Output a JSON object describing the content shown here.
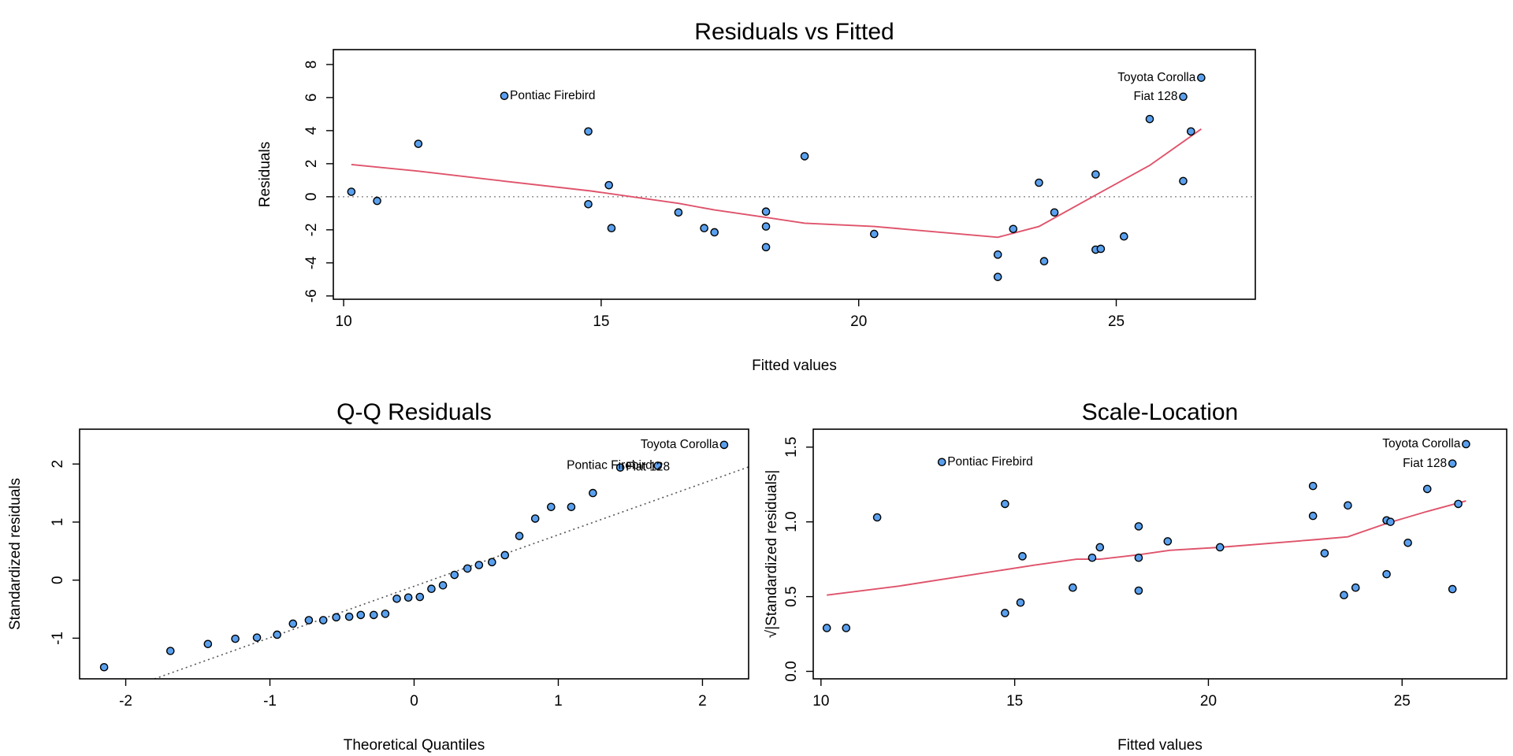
{
  "colors": {
    "points_fill": "#5aa0ee",
    "points_stroke": "#000000",
    "smoother": "#df536b",
    "reference_line": "#9a9a9a",
    "qq_line": "#555555"
  },
  "chart_data": [
    {
      "type": "scatter",
      "title": "Residuals vs Fitted",
      "xlabel": "Fitted values",
      "ylabel": "Residuals",
      "xlim": [
        9.8,
        27.7
      ],
      "ylim": [
        -6.2,
        8.9
      ],
      "xticks": [
        10,
        15,
        20,
        25
      ],
      "yticks": [
        -6,
        -4,
        -2,
        0,
        2,
        4,
        6,
        8
      ],
      "grid": false,
      "reference_line": {
        "y": 0
      },
      "points": [
        {
          "x": 10.15,
          "y": 0.3
        },
        {
          "x": 10.65,
          "y": -0.25
        },
        {
          "x": 11.45,
          "y": 3.2
        },
        {
          "x": 13.12,
          "y": 6.1,
          "label": "Pontiac Firebird"
        },
        {
          "x": 14.75,
          "y": 3.95
        },
        {
          "x": 14.75,
          "y": -0.45
        },
        {
          "x": 15.15,
          "y": 0.7
        },
        {
          "x": 15.2,
          "y": -1.9
        },
        {
          "x": 16.5,
          "y": -0.95
        },
        {
          "x": 17.0,
          "y": -1.9
        },
        {
          "x": 17.2,
          "y": -2.15
        },
        {
          "x": 18.2,
          "y": -0.9
        },
        {
          "x": 18.2,
          "y": -1.8
        },
        {
          "x": 18.2,
          "y": -3.05
        },
        {
          "x": 18.95,
          "y": 2.45
        },
        {
          "x": 20.3,
          "y": -2.25
        },
        {
          "x": 22.7,
          "y": -3.5
        },
        {
          "x": 22.7,
          "y": -4.85
        },
        {
          "x": 23.0,
          "y": -1.95
        },
        {
          "x": 23.5,
          "y": 0.85
        },
        {
          "x": 23.6,
          "y": -3.9
        },
        {
          "x": 23.8,
          "y": -0.95
        },
        {
          "x": 24.6,
          "y": 1.35
        },
        {
          "x": 24.6,
          "y": -3.2
        },
        {
          "x": 24.7,
          "y": -3.15
        },
        {
          "x": 25.15,
          "y": -2.4
        },
        {
          "x": 25.65,
          "y": 4.7
        },
        {
          "x": 26.3,
          "y": 0.95
        },
        {
          "x": 26.3,
          "y": 6.05,
          "label": "Fiat 128"
        },
        {
          "x": 26.45,
          "y": 3.95
        },
        {
          "x": 26.65,
          "y": 7.2,
          "label": "Toyota Corolla"
        }
      ],
      "smooth_line": [
        {
          "x": 10.15,
          "y": 1.95
        },
        {
          "x": 11.45,
          "y": 1.55
        },
        {
          "x": 13.1,
          "y": 0.95
        },
        {
          "x": 14.8,
          "y": 0.35
        },
        {
          "x": 16.5,
          "y": -0.4
        },
        {
          "x": 17.2,
          "y": -0.8
        },
        {
          "x": 18.2,
          "y": -1.25
        },
        {
          "x": 18.95,
          "y": -1.6
        },
        {
          "x": 20.3,
          "y": -1.8
        },
        {
          "x": 22.7,
          "y": -2.45
        },
        {
          "x": 23.5,
          "y": -1.8
        },
        {
          "x": 24.6,
          "y": 0.1
        },
        {
          "x": 25.65,
          "y": 1.9
        },
        {
          "x": 26.65,
          "y": 4.1
        }
      ]
    },
    {
      "type": "scatter",
      "title": "Q-Q Residuals",
      "xlabel": "Theoretical Quantiles",
      "ylabel": "Standardized residuals",
      "xlim": [
        -2.32,
        2.32
      ],
      "ylim": [
        -1.7,
        2.6
      ],
      "xticks": [
        -2,
        -1,
        0,
        1,
        2
      ],
      "yticks": [
        -1,
        0,
        1,
        2
      ],
      "grid": false,
      "reference_line": {
        "x1": -1.8,
        "y1": -1.7,
        "x2": 2.32,
        "y2": 1.95
      },
      "points": [
        {
          "x": -2.15,
          "y": -1.5
        },
        {
          "x": -1.69,
          "y": -1.22
        },
        {
          "x": -1.43,
          "y": -1.1
        },
        {
          "x": -1.24,
          "y": -1.01
        },
        {
          "x": -1.09,
          "y": -0.99
        },
        {
          "x": -0.95,
          "y": -0.94
        },
        {
          "x": -0.84,
          "y": -0.75
        },
        {
          "x": -0.73,
          "y": -0.69
        },
        {
          "x": -0.63,
          "y": -0.69
        },
        {
          "x": -0.54,
          "y": -0.64
        },
        {
          "x": -0.45,
          "y": -0.63
        },
        {
          "x": -0.37,
          "y": -0.6
        },
        {
          "x": -0.28,
          "y": -0.6
        },
        {
          "x": -0.2,
          "y": -0.58
        },
        {
          "x": -0.12,
          "y": -0.32
        },
        {
          "x": -0.04,
          "y": -0.3
        },
        {
          "x": 0.04,
          "y": -0.29
        },
        {
          "x": 0.12,
          "y": -0.15
        },
        {
          "x": 0.2,
          "y": -0.09
        },
        {
          "x": 0.28,
          "y": 0.09
        },
        {
          "x": 0.37,
          "y": 0.2
        },
        {
          "x": 0.45,
          "y": 0.26
        },
        {
          "x": 0.54,
          "y": 0.31
        },
        {
          "x": 0.63,
          "y": 0.43
        },
        {
          "x": 0.73,
          "y": 0.76
        },
        {
          "x": 0.84,
          "y": 1.06
        },
        {
          "x": 0.95,
          "y": 1.26
        },
        {
          "x": 1.09,
          "y": 1.26
        },
        {
          "x": 1.24,
          "y": 1.5
        },
        {
          "x": 1.43,
          "y": 1.94,
          "label": "Fiat 128"
        },
        {
          "x": 1.69,
          "y": 1.97,
          "label": "Pontiac Firebird"
        },
        {
          "x": 2.15,
          "y": 2.33,
          "label": "Toyota Corolla"
        }
      ]
    },
    {
      "type": "scatter",
      "title": "Scale-Location",
      "xlabel": "Fitted values",
      "ylabel": "√|Standardized residuals|",
      "xlim": [
        9.8,
        27.7
      ],
      "ylim": [
        -0.05,
        1.62
      ],
      "xticks": [
        10,
        15,
        20,
        25
      ],
      "yticks": [
        0.0,
        0.5,
        1.0,
        1.5
      ],
      "ytick_labels": [
        "0.0",
        "0.5",
        "1.0",
        "1.5"
      ],
      "grid": false,
      "points": [
        {
          "x": 10.15,
          "y": 0.29
        },
        {
          "x": 10.65,
          "y": 0.29
        },
        {
          "x": 11.45,
          "y": 1.03
        },
        {
          "x": 13.12,
          "y": 1.4,
          "label": "Pontiac Firebird"
        },
        {
          "x": 14.75,
          "y": 1.12
        },
        {
          "x": 14.75,
          "y": 0.39
        },
        {
          "x": 15.15,
          "y": 0.46
        },
        {
          "x": 15.2,
          "y": 0.77
        },
        {
          "x": 16.5,
          "y": 0.56
        },
        {
          "x": 17.0,
          "y": 0.76
        },
        {
          "x": 17.2,
          "y": 0.83
        },
        {
          "x": 18.2,
          "y": 0.97
        },
        {
          "x": 18.2,
          "y": 0.76
        },
        {
          "x": 18.2,
          "y": 0.54
        },
        {
          "x": 18.95,
          "y": 0.87
        },
        {
          "x": 20.3,
          "y": 0.83
        },
        {
          "x": 22.7,
          "y": 1.24
        },
        {
          "x": 22.7,
          "y": 1.04
        },
        {
          "x": 23.0,
          "y": 0.79
        },
        {
          "x": 23.5,
          "y": 0.51
        },
        {
          "x": 23.6,
          "y": 1.11
        },
        {
          "x": 23.8,
          "y": 0.56
        },
        {
          "x": 24.6,
          "y": 1.01
        },
        {
          "x": 24.6,
          "y": 0.65
        },
        {
          "x": 24.7,
          "y": 1.0
        },
        {
          "x": 25.15,
          "y": 0.86
        },
        {
          "x": 25.65,
          "y": 1.22
        },
        {
          "x": 26.3,
          "y": 0.55
        },
        {
          "x": 26.3,
          "y": 1.39,
          "label": "Fiat 128"
        },
        {
          "x": 26.45,
          "y": 1.12
        },
        {
          "x": 26.65,
          "y": 1.52,
          "label": "Toyota Corolla"
        }
      ],
      "smooth_line": [
        {
          "x": 10.15,
          "y": 0.51
        },
        {
          "x": 12.0,
          "y": 0.57
        },
        {
          "x": 14.0,
          "y": 0.65
        },
        {
          "x": 15.5,
          "y": 0.71
        },
        {
          "x": 16.6,
          "y": 0.75
        },
        {
          "x": 17.2,
          "y": 0.75
        },
        {
          "x": 18.2,
          "y": 0.78
        },
        {
          "x": 19.0,
          "y": 0.81
        },
        {
          "x": 20.3,
          "y": 0.83
        },
        {
          "x": 22.7,
          "y": 0.88
        },
        {
          "x": 23.6,
          "y": 0.9
        },
        {
          "x": 24.6,
          "y": 0.99
        },
        {
          "x": 25.65,
          "y": 1.07
        },
        {
          "x": 26.65,
          "y": 1.14
        }
      ]
    }
  ]
}
